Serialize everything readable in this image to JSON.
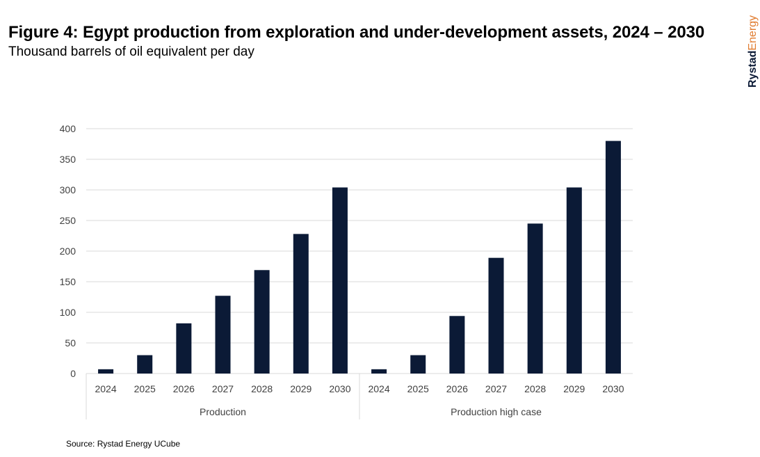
{
  "header": {
    "title": "Figure 4: Egypt production from exploration and under-development assets, 2024 – 2030",
    "subtitle": "Thousand barrels of oil equivalent per day"
  },
  "brand": {
    "part1": "Rystad",
    "part2": "Energy",
    "color_primary": "#0b1a36",
    "color_accent": "#e07b2e"
  },
  "footer": {
    "source": "Source: Rystad Energy UCube"
  },
  "chart_data": {
    "type": "bar",
    "title": "Figure 4: Egypt production from exploration and under-development assets, 2024 – 2030",
    "subtitle": "Thousand barrels of oil equivalent per day",
    "xlabel": "",
    "ylabel": "",
    "ylim": [
      0,
      400
    ],
    "yticks": [
      0,
      50,
      100,
      150,
      200,
      250,
      300,
      350,
      400
    ],
    "grid": true,
    "legend": "none",
    "bar_color": "#0b1a36",
    "groups": [
      {
        "name": "Production",
        "categories": [
          "2024",
          "2025",
          "2026",
          "2027",
          "2028",
          "2029",
          "2030"
        ],
        "values": [
          7,
          30,
          82,
          127,
          169,
          228,
          304
        ]
      },
      {
        "name": "Production high case",
        "categories": [
          "2024",
          "2025",
          "2026",
          "2027",
          "2028",
          "2029",
          "2030"
        ],
        "values": [
          7,
          30,
          94,
          189,
          245,
          304,
          380
        ]
      }
    ]
  }
}
